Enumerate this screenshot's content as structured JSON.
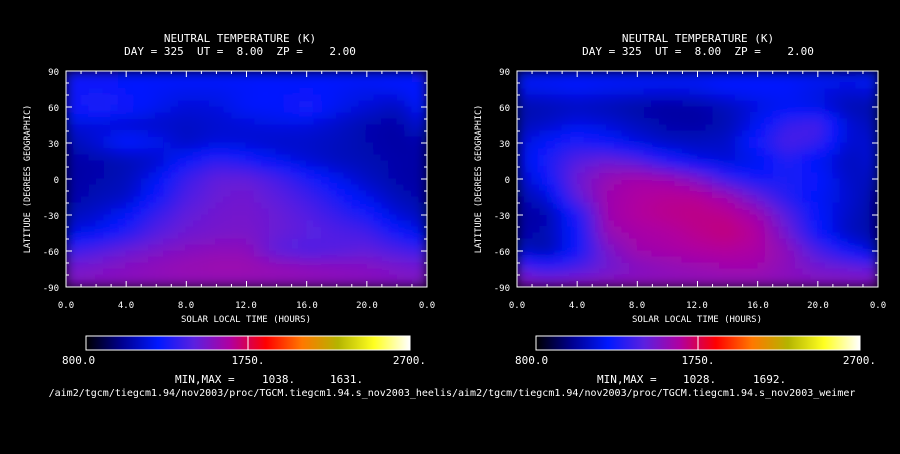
{
  "panels": [
    {
      "title_line1": "NEUTRAL TEMPERATURE (K)",
      "title_line2": "DAY = 325  UT =  8.00  ZP =    2.00",
      "xlabel": "SOLAR LOCAL TIME (HOURS)",
      "ylabel": "LATITUDE (DEGREES GEOGRAPHIC)",
      "x_ticks": [
        "0.0",
        "4.0",
        "8.0",
        "12.0",
        "16.0",
        "20.0",
        "0.0"
      ],
      "y_ticks": [
        "90",
        "60",
        "30",
        "0",
        "-30",
        "-60",
        "-90"
      ],
      "colorbar_labels": [
        "800.0",
        "1750.",
        "2700."
      ],
      "minmax_label": "MIN,MAX =",
      "min_value": "1038.",
      "max_value": "1631.",
      "path": "/aim2/tgcm/tiegcm1.94/nov2003/proc/TGCM.tiegcm1.94.s_nov2003_heelis"
    },
    {
      "title_line1": "NEUTRAL TEMPERATURE (K)",
      "title_line2": "DAY = 325  UT =  8.00  ZP =    2.00",
      "xlabel": "SOLAR LOCAL TIME (HOURS)",
      "ylabel": "LATITUDE (DEGREES GEOGRAPHIC)",
      "x_ticks": [
        "0.0",
        "4.0",
        "8.0",
        "12.0",
        "16.0",
        "20.0",
        "0.0"
      ],
      "y_ticks": [
        "90",
        "60",
        "30",
        "0",
        "-30",
        "-60",
        "-90"
      ],
      "colorbar_labels": [
        "800.0",
        "1750.",
        "2700."
      ],
      "minmax_label": "MIN,MAX =",
      "min_value": "1028.",
      "max_value": "1692.",
      "path": "/aim2/tgcm/tiegcm1.94/nov2003/proc/TGCM.tiegcm1.94.s_nov2003_weimer"
    }
  ],
  "colors": {
    "background": "#000000",
    "colorscale": [
      "#000000",
      "#000090",
      "#0018ff",
      "#5a20e0",
      "#b000a0",
      "#ff0000",
      "#ff7800",
      "#b4b400",
      "#ffff20",
      "#ffffff"
    ]
  },
  "chart_data": [
    {
      "type": "heatmap",
      "title": "NEUTRAL TEMPERATURE (K)",
      "subtitle": "DAY = 325  UT =  8.00  ZP =    2.00",
      "xlabel": "SOLAR LOCAL TIME (HOURS)",
      "ylabel": "LATITUDE (DEGREES GEOGRAPHIC)",
      "xlim": [
        0,
        24
      ],
      "ylim": [
        -90,
        90
      ],
      "color_range": [
        800,
        2700
      ],
      "min": 1038,
      "max": 1631,
      "x": [
        0,
        2,
        4,
        6,
        8,
        10,
        12,
        14,
        16,
        18,
        20,
        22,
        24
      ],
      "y": [
        -90,
        -75,
        -60,
        -45,
        -30,
        -15,
        0,
        15,
        30,
        45,
        60,
        75,
        90
      ],
      "values": [
        [
          1530,
          1540,
          1545,
          1545,
          1550,
          1550,
          1550,
          1545,
          1545,
          1540,
          1540,
          1535,
          1530
        ],
        [
          1500,
          1520,
          1545,
          1570,
          1590,
          1600,
          1600,
          1590,
          1575,
          1560,
          1545,
          1520,
          1500
        ],
        [
          1350,
          1410,
          1470,
          1510,
          1540,
          1560,
          1560,
          1440,
          1400,
          1420,
          1450,
          1400,
          1350
        ],
        [
          1150,
          1200,
          1300,
          1420,
          1480,
          1500,
          1510,
          1470,
          1440,
          1410,
          1380,
          1260,
          1150
        ],
        [
          1080,
          1130,
          1210,
          1350,
          1450,
          1490,
          1500,
          1470,
          1420,
          1350,
          1270,
          1150,
          1080
        ],
        [
          1050,
          1080,
          1110,
          1250,
          1400,
          1470,
          1490,
          1440,
          1370,
          1280,
          1180,
          1090,
          1050
        ],
        [
          1045,
          1065,
          1090,
          1200,
          1360,
          1450,
          1460,
          1390,
          1290,
          1190,
          1110,
          1060,
          1045
        ],
        [
          1050,
          1060,
          1080,
          1120,
          1240,
          1330,
          1280,
          1200,
          1140,
          1100,
          1080,
          1060,
          1050
        ],
        [
          1060,
          1150,
          1250,
          1200,
          1110,
          1150,
          1140,
          1120,
          1120,
          1100,
          1070,
          1050,
          1060
        ],
        [
          1150,
          1150,
          1130,
          1120,
          1110,
          1130,
          1150,
          1170,
          1160,
          1120,
          1070,
          1050,
          1150
        ],
        [
          1250,
          1300,
          1280,
          1200,
          1150,
          1160,
          1220,
          1230,
          1300,
          1200,
          1150,
          1100,
          1250
        ],
        [
          1250,
          1260,
          1230,
          1210,
          1200,
          1200,
          1210,
          1230,
          1230,
          1210,
          1190,
          1210,
          1250
        ],
        [
          1240,
          1240,
          1240,
          1240,
          1240,
          1240,
          1240,
          1240,
          1240,
          1240,
          1240,
          1240,
          1240
        ]
      ]
    },
    {
      "type": "heatmap",
      "title": "NEUTRAL TEMPERATURE (K)",
      "subtitle": "DAY = 325  UT =  8.00  ZP =    2.00",
      "xlabel": "SOLAR LOCAL TIME (HOURS)",
      "ylabel": "LATITUDE (DEGREES GEOGRAPHIC)",
      "xlim": [
        0,
        24
      ],
      "ylim": [
        -90,
        90
      ],
      "color_range": [
        800,
        2700
      ],
      "min": 1028,
      "max": 1692,
      "x": [
        0,
        2,
        4,
        6,
        8,
        10,
        12,
        14,
        16,
        18,
        20,
        22,
        24
      ],
      "y": [
        -90,
        -75,
        -60,
        -45,
        -30,
        -15,
        0,
        15,
        30,
        45,
        60,
        75,
        90
      ],
      "values": [
        [
          1560,
          1565,
          1570,
          1570,
          1565,
          1560,
          1560,
          1555,
          1550,
          1550,
          1550,
          1550,
          1555
        ],
        [
          1450,
          1350,
          1400,
          1480,
          1530,
          1560,
          1580,
          1600,
          1600,
          1550,
          1500,
          1480,
          1450
        ],
        [
          1100,
          1060,
          1250,
          1500,
          1600,
          1620,
          1640,
          1650,
          1630,
          1560,
          1400,
          1250,
          1100
        ],
        [
          1050,
          1080,
          1250,
          1580,
          1620,
          1640,
          1670,
          1692,
          1650,
          1480,
          1250,
          1100,
          1050
        ],
        [
          1040,
          1060,
          1280,
          1600,
          1650,
          1670,
          1680,
          1670,
          1600,
          1420,
          1230,
          1120,
          1040
        ],
        [
          1050,
          1150,
          1450,
          1600,
          1640,
          1660,
          1660,
          1600,
          1450,
          1300,
          1210,
          1140,
          1050
        ],
        [
          1090,
          1250,
          1480,
          1580,
          1620,
          1600,
          1520,
          1350,
          1260,
          1280,
          1250,
          1120,
          1090
        ],
        [
          1140,
          1290,
          1420,
          1470,
          1420,
          1280,
          1180,
          1140,
          1180,
          1300,
          1200,
          1100,
          1140
        ],
        [
          1130,
          1230,
          1290,
          1240,
          1160,
          1110,
          1100,
          1120,
          1270,
          1400,
          1350,
          1140,
          1130
        ],
        [
          1080,
          1120,
          1180,
          1150,
          1100,
          1060,
          1050,
          1080,
          1200,
          1350,
          1400,
          1150,
          1080
        ],
        [
          1060,
          1080,
          1100,
          1080,
          1050,
          1040,
          1050,
          1090,
          1160,
          1200,
          1170,
          1080,
          1060
        ],
        [
          1180,
          1200,
          1220,
          1200,
          1190,
          1180,
          1190,
          1230,
          1230,
          1220,
          1180,
          1150,
          1180
        ],
        [
          1210,
          1210,
          1210,
          1210,
          1210,
          1210,
          1210,
          1210,
          1210,
          1210,
          1210,
          1210,
          1210
        ]
      ]
    }
  ]
}
